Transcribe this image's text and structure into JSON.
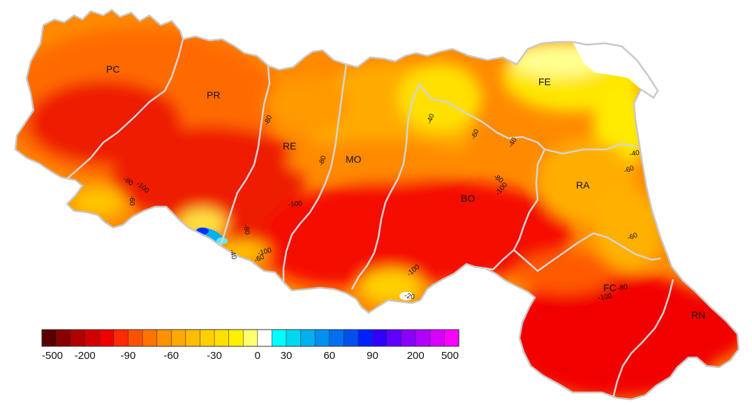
{
  "map": {
    "provinces": [
      {
        "id": "pc",
        "label": "PC"
      },
      {
        "id": "pr",
        "label": "PR"
      },
      {
        "id": "re",
        "label": "RE"
      },
      {
        "id": "mo",
        "label": "MO"
      },
      {
        "id": "bo",
        "label": "BO"
      },
      {
        "id": "fe",
        "label": "FE"
      },
      {
        "id": "ra",
        "label": "RA"
      },
      {
        "id": "fc",
        "label": "FC"
      },
      {
        "id": "rn",
        "label": "RN"
      }
    ],
    "contour_labels": [
      "-80",
      "-100",
      "-60",
      "-80",
      "-80",
      "-40",
      "-60",
      "-40",
      "-60",
      "-40",
      "-100",
      "-80",
      "-100",
      "-100",
      "-60",
      "-80",
      "-100",
      "-20",
      "-80",
      "-100",
      "-60"
    ]
  },
  "legend": {
    "colors": [
      "#5a0000",
      "#8a0000",
      "#b00000",
      "#d40000",
      "#ee0000",
      "#ff2a00",
      "#ff5200",
      "#ff7400",
      "#ff9000",
      "#ffa800",
      "#ffbc00",
      "#ffd000",
      "#ffe000",
      "#fff000",
      "#ffff70",
      "#ffffff",
      "#00ffff",
      "#00d8f0",
      "#00b0f0",
      "#0090f0",
      "#0070f0",
      "#0050f0",
      "#0020ff",
      "#3000ff",
      "#6000ff",
      "#8a00ff",
      "#b000ff",
      "#d800ff",
      "#ff00ff"
    ],
    "tick_labels": [
      "-500",
      "-200",
      "-90",
      "-60",
      "-30",
      "0",
      "30",
      "60",
      "90",
      "200",
      "500"
    ]
  }
}
